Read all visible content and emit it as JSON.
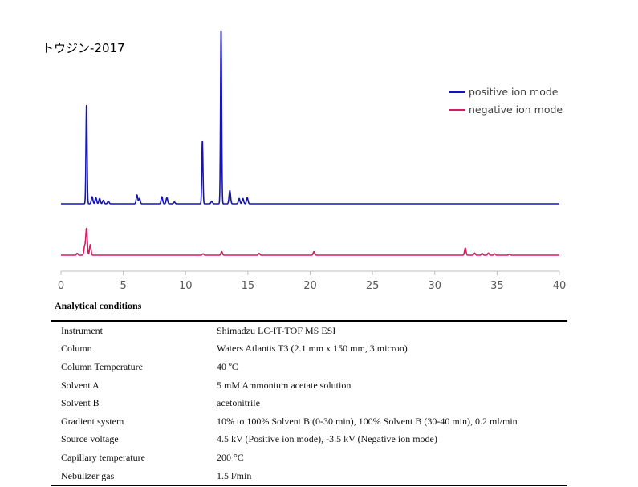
{
  "chart_data": {
    "type": "line",
    "title": "トウジン-2017",
    "xlim": [
      0,
      40
    ],
    "xticks": [
      0,
      5,
      10,
      15,
      20,
      25,
      30,
      35,
      40
    ],
    "grid": false,
    "legend_position": "top-right",
    "series": [
      {
        "name": "positive ion mode",
        "color": "#1515b5",
        "baseline": 0,
        "peaks": [
          {
            "x": 2.05,
            "y": 0.57
          },
          {
            "x": 2.5,
            "y": 0.04
          },
          {
            "x": 2.8,
            "y": 0.035
          },
          {
            "x": 3.1,
            "y": 0.03
          },
          {
            "x": 3.4,
            "y": 0.02
          },
          {
            "x": 3.8,
            "y": 0.015
          },
          {
            "x": 6.1,
            "y": 0.05
          },
          {
            "x": 6.3,
            "y": 0.03
          },
          {
            "x": 8.1,
            "y": 0.04
          },
          {
            "x": 8.5,
            "y": 0.035
          },
          {
            "x": 9.1,
            "y": 0.01
          },
          {
            "x": 11.35,
            "y": 0.36
          },
          {
            "x": 12.1,
            "y": 0.015
          },
          {
            "x": 12.85,
            "y": 1.0
          },
          {
            "x": 13.55,
            "y": 0.075
          },
          {
            "x": 14.3,
            "y": 0.03
          },
          {
            "x": 14.6,
            "y": 0.03
          },
          {
            "x": 14.95,
            "y": 0.035
          }
        ]
      },
      {
        "name": "negative ion mode",
        "color": "#d81b60",
        "baseline": 0,
        "peaks": [
          {
            "x": 1.3,
            "y": 0.01
          },
          {
            "x": 1.9,
            "y": 0.05
          },
          {
            "x": 2.05,
            "y": 0.15
          },
          {
            "x": 2.35,
            "y": 0.06
          },
          {
            "x": 11.4,
            "y": 0.008
          },
          {
            "x": 12.9,
            "y": 0.02
          },
          {
            "x": 15.9,
            "y": 0.01
          },
          {
            "x": 20.3,
            "y": 0.02
          },
          {
            "x": 32.45,
            "y": 0.04
          },
          {
            "x": 33.2,
            "y": 0.012
          },
          {
            "x": 33.8,
            "y": 0.01
          },
          {
            "x": 34.3,
            "y": 0.012
          },
          {
            "x": 34.8,
            "y": 0.008
          },
          {
            "x": 36.0,
            "y": 0.006
          }
        ]
      }
    ]
  },
  "conditions": {
    "title": "Analytical conditions",
    "rows": [
      {
        "label": "Instrument",
        "value": "Shimadzu LC-IT-TOF MS ESI"
      },
      {
        "label": "Column",
        "value": "Waters Atlantis T3 (2.1 mm x 150 mm, 3 micron)"
      },
      {
        "label": "Column Temperature",
        "value": "40 ºC"
      },
      {
        "label": "Solvent A",
        "value": "5 mM Ammonium acetate solution"
      },
      {
        "label": "Solvent B",
        "value": "acetonitrile"
      },
      {
        "label": "Gradient system",
        "value": "10% to 100% Solvent B (0-30 min), 100% Solvent B (30-40 min), 0.2 ml/min"
      },
      {
        "label": "Source voltage",
        "value": "4.5 kV (Positive ion mode), -3.5 kV (Negative ion mode)"
      },
      {
        "label": "Capillary temperature",
        "value": "200 °C"
      },
      {
        "label": "Nebulizer gas",
        "value": "1.5 l/min"
      }
    ]
  }
}
